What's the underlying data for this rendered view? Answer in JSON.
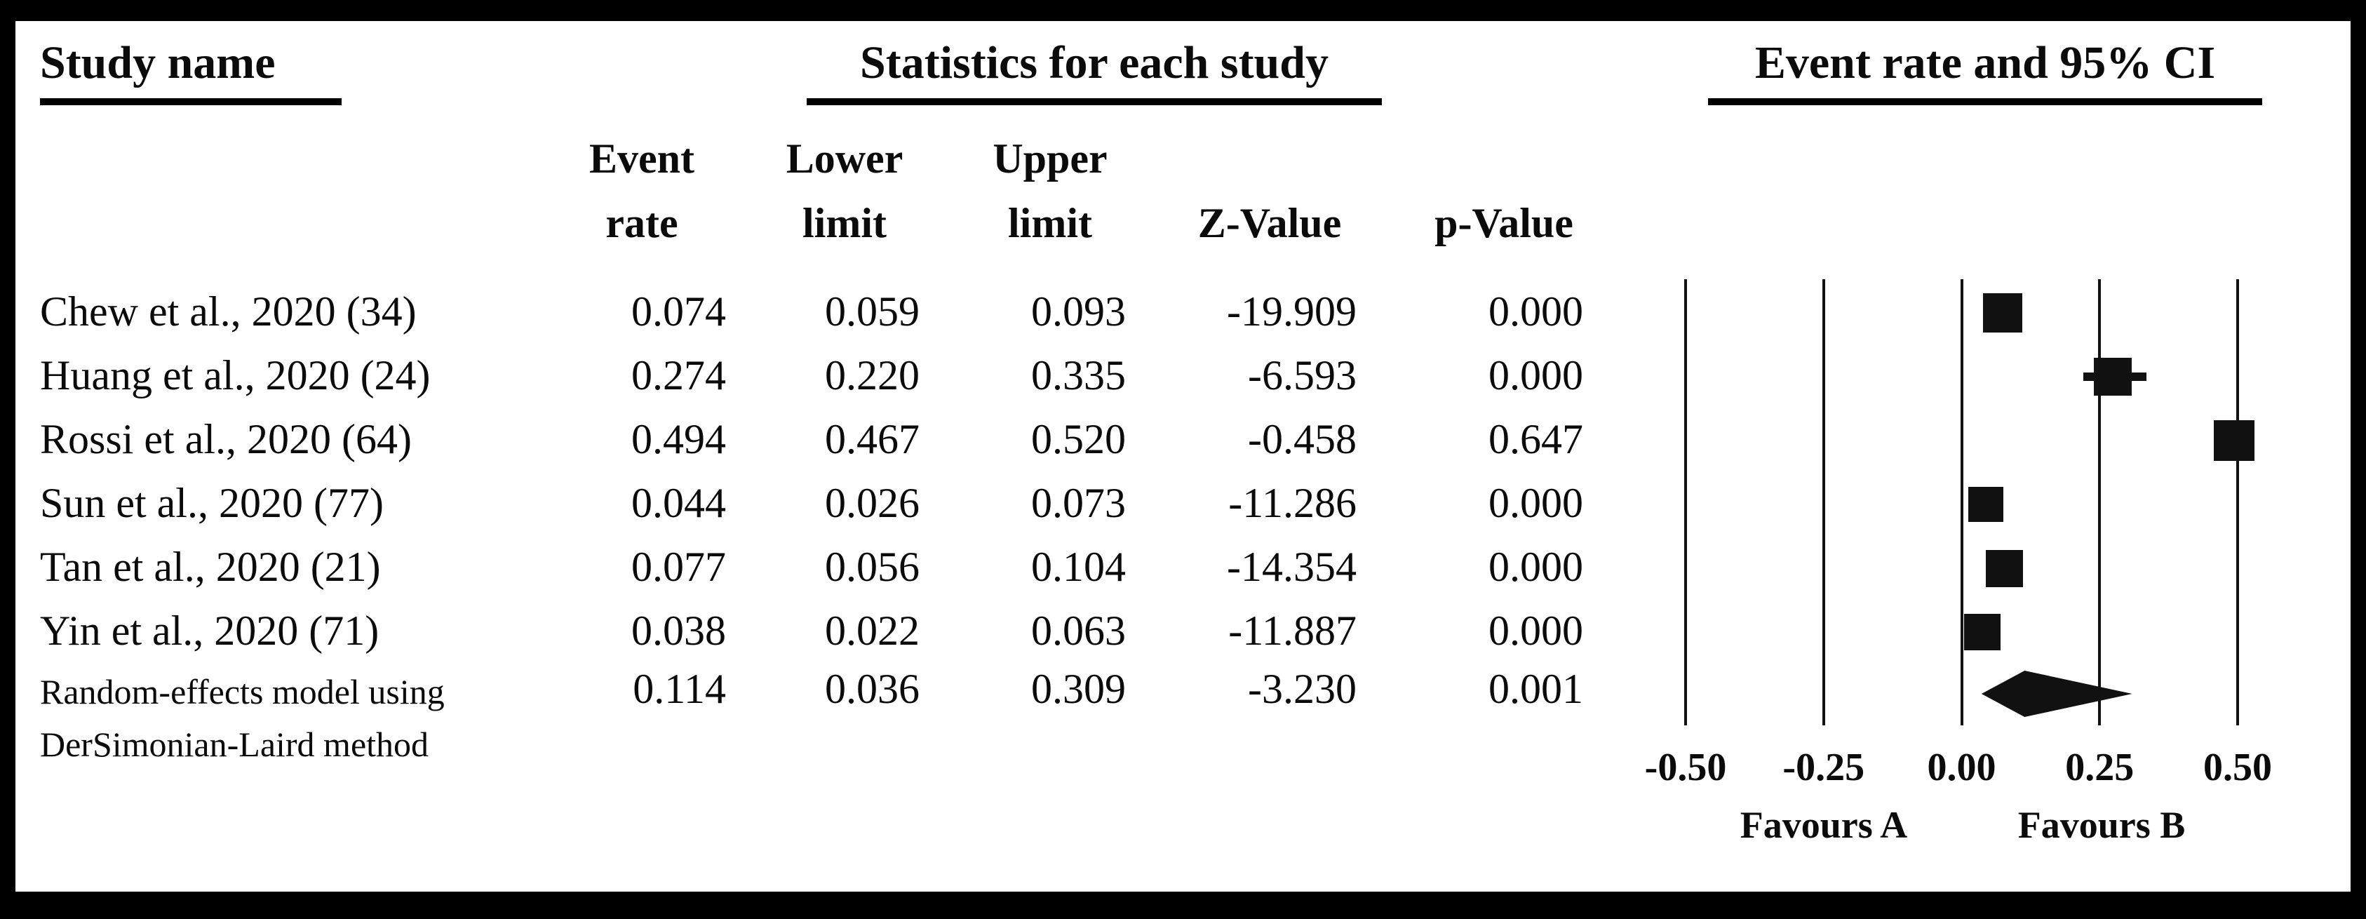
{
  "figure": {
    "study_group_title": "Study name",
    "stats_group_title": "Statistics for each study",
    "plot_group_title": "Event rate and 95% CI"
  },
  "columns": {
    "event_rate": [
      "Event",
      "rate"
    ],
    "lower_limit": [
      "Lower",
      "limit"
    ],
    "upper_limit": [
      "Upper",
      "limit"
    ],
    "z_value": "Z-Value",
    "p_value": "p-Value"
  },
  "chart_data": {
    "type": "forest",
    "title": "Event rate and 95% CI",
    "x_axis": {
      "min": -0.5,
      "max": 0.5,
      "tick_labels": [
        "-0.50",
        "-0.25",
        "0.00",
        "0.25",
        "0.50"
      ],
      "favours_left": "Favours A",
      "favours_right": "Favours B",
      "grid": "vertical-lines-at-ticks"
    },
    "studies": [
      {
        "name": "Chew et al., 2020 (34)",
        "event_rate": "0.074",
        "lower_limit": "0.059",
        "upper_limit": "0.093",
        "z_value": "-19.909",
        "p_value": "0.000"
      },
      {
        "name": "Huang et al., 2020 (24)",
        "event_rate": "0.274",
        "lower_limit": "0.220",
        "upper_limit": "0.335",
        "z_value": "-6.593",
        "p_value": "0.000"
      },
      {
        "name": "Rossi  et al., 2020 (64)",
        "event_rate": "0.494",
        "lower_limit": "0.467",
        "upper_limit": "0.520",
        "z_value": "-0.458",
        "p_value": "0.647"
      },
      {
        "name": "Sun et al., 2020 (77)",
        "event_rate": "0.044",
        "lower_limit": "0.026",
        "upper_limit": "0.073",
        "z_value": "-11.286",
        "p_value": "0.000"
      },
      {
        "name": "Tan et al., 2020 (21)",
        "event_rate": "0.077",
        "lower_limit": "0.056",
        "upper_limit": "0.104",
        "z_value": "-14.354",
        "p_value": "0.000"
      },
      {
        "name": "Yin et al., 2020 (71)",
        "event_rate": "0.038",
        "lower_limit": "0.022",
        "upper_limit": "0.063",
        "z_value": "-11.887",
        "p_value": "0.000"
      }
    ],
    "summary": {
      "name_lines": [
        "Random-effects model using",
        "DerSimonian-Laird method"
      ],
      "event_rate": "0.114",
      "lower_limit": "0.036",
      "upper_limit": "0.309",
      "z_value": "-3.230",
      "p_value": "0.001",
      "marker": "diamond"
    }
  }
}
